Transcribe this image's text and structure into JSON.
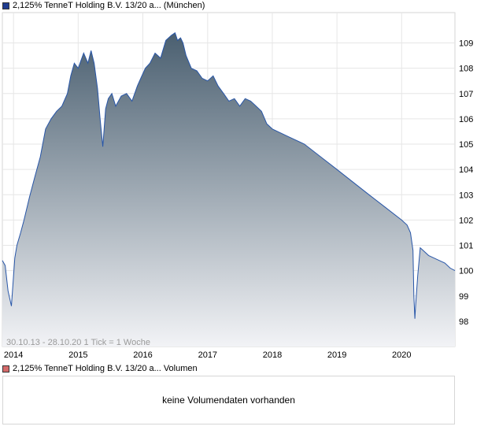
{
  "legend": {
    "price": {
      "label": "2,125% TenneT Holding B.V. 13/20 a... (München)",
      "color": "#1f3c8f"
    },
    "volume": {
      "label": "2,125% TenneT Holding B.V. 13/20 a... Volumen",
      "color": "#d46a6a"
    }
  },
  "chart_info": "30.10.13 - 28.10.20   1 Tick = 1 Woche",
  "volume_panel": {
    "message": "keine Volumendaten vorhanden"
  },
  "chart_data": {
    "type": "area",
    "xlim": [
      "2013-10-30",
      "2020-10-28"
    ],
    "ylim": [
      97,
      110.2
    ],
    "grid": true,
    "legend": "top-left",
    "colors": {
      "line": "#2856a8",
      "fill_top": "#4a5f70",
      "fill_bottom": "#f2f3f6"
    },
    "xticks": [
      {
        "date": "2014-01-01",
        "label": "2014"
      },
      {
        "date": "2015-01-01",
        "label": "2015"
      },
      {
        "date": "2016-01-01",
        "label": "2016"
      },
      {
        "date": "2017-01-01",
        "label": "2017"
      },
      {
        "date": "2018-01-01",
        "label": "2018"
      },
      {
        "date": "2019-01-01",
        "label": "2019"
      },
      {
        "date": "2020-01-01",
        "label": "2020"
      }
    ],
    "yticks": [
      98,
      99,
      100,
      101,
      102,
      103,
      104,
      105,
      106,
      107,
      108,
      109
    ],
    "series": [
      {
        "x": [
          "2013-10-30",
          "2013-11-15",
          "2013-12-01",
          "2013-12-20",
          "2014-01-08",
          "2014-01-20",
          "2014-02-10",
          "2014-03-01",
          "2014-04-01",
          "2014-05-01",
          "2014-06-01",
          "2014-07-01",
          "2014-08-01",
          "2014-09-01",
          "2014-10-01",
          "2014-11-01",
          "2014-11-20",
          "2014-12-10",
          "2015-01-01",
          "2015-02-01",
          "2015-02-25",
          "2015-03-15",
          "2015-04-01",
          "2015-04-20",
          "2015-05-05",
          "2015-05-20",
          "2015-06-05",
          "2015-06-20",
          "2015-07-10",
          "2015-08-01",
          "2015-09-01",
          "2015-10-01",
          "2015-11-01",
          "2015-12-01",
          "2015-12-20",
          "2016-01-15",
          "2016-02-10",
          "2016-03-10",
          "2016-04-10",
          "2016-05-10",
          "2016-06-10",
          "2016-07-01",
          "2016-07-15",
          "2016-08-01",
          "2016-08-15",
          "2016-09-01",
          "2016-10-01",
          "2016-11-01",
          "2016-12-01",
          "2017-01-01",
          "2017-02-01",
          "2017-03-01",
          "2017-04-01",
          "2017-05-01",
          "2017-06-01",
          "2017-07-01",
          "2017-08-01",
          "2017-09-01",
          "2017-10-01",
          "2017-11-01",
          "2017-12-01",
          "2018-01-01",
          "2018-04-01",
          "2018-07-01",
          "2018-10-01",
          "2019-01-01",
          "2019-04-01",
          "2019-07-01",
          "2019-10-01",
          "2020-01-01",
          "2020-02-01",
          "2020-02-20",
          "2020-03-05",
          "2020-03-10",
          "2020-03-16",
          "2020-03-20",
          "2020-04-01",
          "2020-04-15",
          "2020-05-01",
          "2020-06-01",
          "2020-07-01",
          "2020-08-01",
          "2020-09-01",
          "2020-10-01",
          "2020-10-28"
        ],
        "y": [
          100.4,
          100.2,
          99.2,
          98.6,
          100.5,
          101.0,
          101.5,
          102.0,
          102.9,
          103.7,
          104.5,
          105.6,
          106.0,
          106.3,
          106.5,
          107.0,
          107.7,
          108.2,
          108.0,
          108.6,
          108.2,
          108.7,
          108.2,
          107.2,
          106.0,
          104.9,
          106.4,
          106.8,
          107.0,
          106.5,
          106.9,
          107.0,
          106.7,
          107.3,
          107.6,
          108.0,
          108.2,
          108.6,
          108.4,
          109.1,
          109.3,
          109.4,
          109.1,
          109.2,
          109.0,
          108.5,
          108.0,
          107.9,
          107.6,
          107.5,
          107.7,
          107.3,
          107.0,
          106.7,
          106.8,
          106.5,
          106.8,
          106.7,
          106.5,
          106.3,
          105.8,
          105.6,
          105.3,
          105.0,
          104.5,
          104.0,
          103.5,
          103.0,
          102.5,
          102.0,
          101.8,
          101.5,
          100.8,
          99.0,
          98.1,
          98.6,
          99.8,
          100.9,
          100.8,
          100.6,
          100.5,
          100.4,
          100.3,
          100.1,
          100.0
        ]
      }
    ]
  }
}
